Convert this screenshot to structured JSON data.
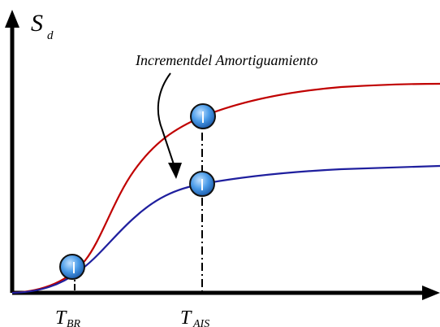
{
  "y_axis": {
    "label_main": "S",
    "label_sub": "d"
  },
  "annotation": {
    "text": "Incrementdel Amortiguamiento"
  },
  "markers": {
    "t_br": {
      "main": "T",
      "sub": "BR"
    },
    "t_ais": {
      "main": "T",
      "sub": "AIS"
    }
  },
  "curves": [
    {
      "name": "upper",
      "color": "#c00000"
    },
    {
      "name": "lower",
      "color": "#1f1f9e"
    }
  ],
  "colors": {
    "axis": "#000000",
    "point_fill": "#3c8fe0",
    "point_stroke": "#111111",
    "guide_line": "#000000"
  },
  "icons": {
    "arrow": "curved-arrow-icon",
    "point": "circle-marker-icon"
  }
}
